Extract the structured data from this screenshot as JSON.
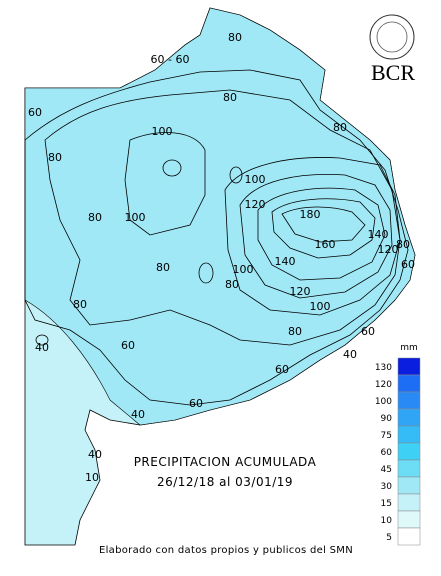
{
  "logo": {
    "name": "BCR"
  },
  "title": "PRECIPITACION ACUMULADA",
  "period": "26/12/18 al 03/01/19",
  "footer": "Elaborado con datos propios y publicos del SMN",
  "legend": {
    "unit": "mm",
    "items": [
      {
        "label": "130",
        "color": "#0a1ee0"
      },
      {
        "label": "120",
        "color": "#1e6ef5"
      },
      {
        "label": "100",
        "color": "#2a8af5"
      },
      {
        "label": "90",
        "color": "#30a5f5"
      },
      {
        "label": "75",
        "color": "#35bbf5"
      },
      {
        "label": "60",
        "color": "#3fd0f5"
      },
      {
        "label": "45",
        "color": "#6ddcf5"
      },
      {
        "label": "30",
        "color": "#a0e8f5"
      },
      {
        "label": "15",
        "color": "#c5f2f8"
      },
      {
        "label": "10",
        "color": "#dff8fa"
      },
      {
        "label": "5",
        "color": "#ffffff"
      }
    ]
  },
  "contour_labels": [
    "80",
    "60 - 60",
    "80",
    "60",
    "100",
    "80",
    "80",
    "100",
    "120",
    "100",
    "80",
    "180",
    "140",
    "160",
    "120",
    "80",
    "60",
    "80",
    "140",
    "100",
    "80",
    "120",
    "100",
    "80",
    "80",
    "60",
    "40",
    "60",
    "60",
    "40",
    "40",
    "60",
    "40",
    "10"
  ]
}
